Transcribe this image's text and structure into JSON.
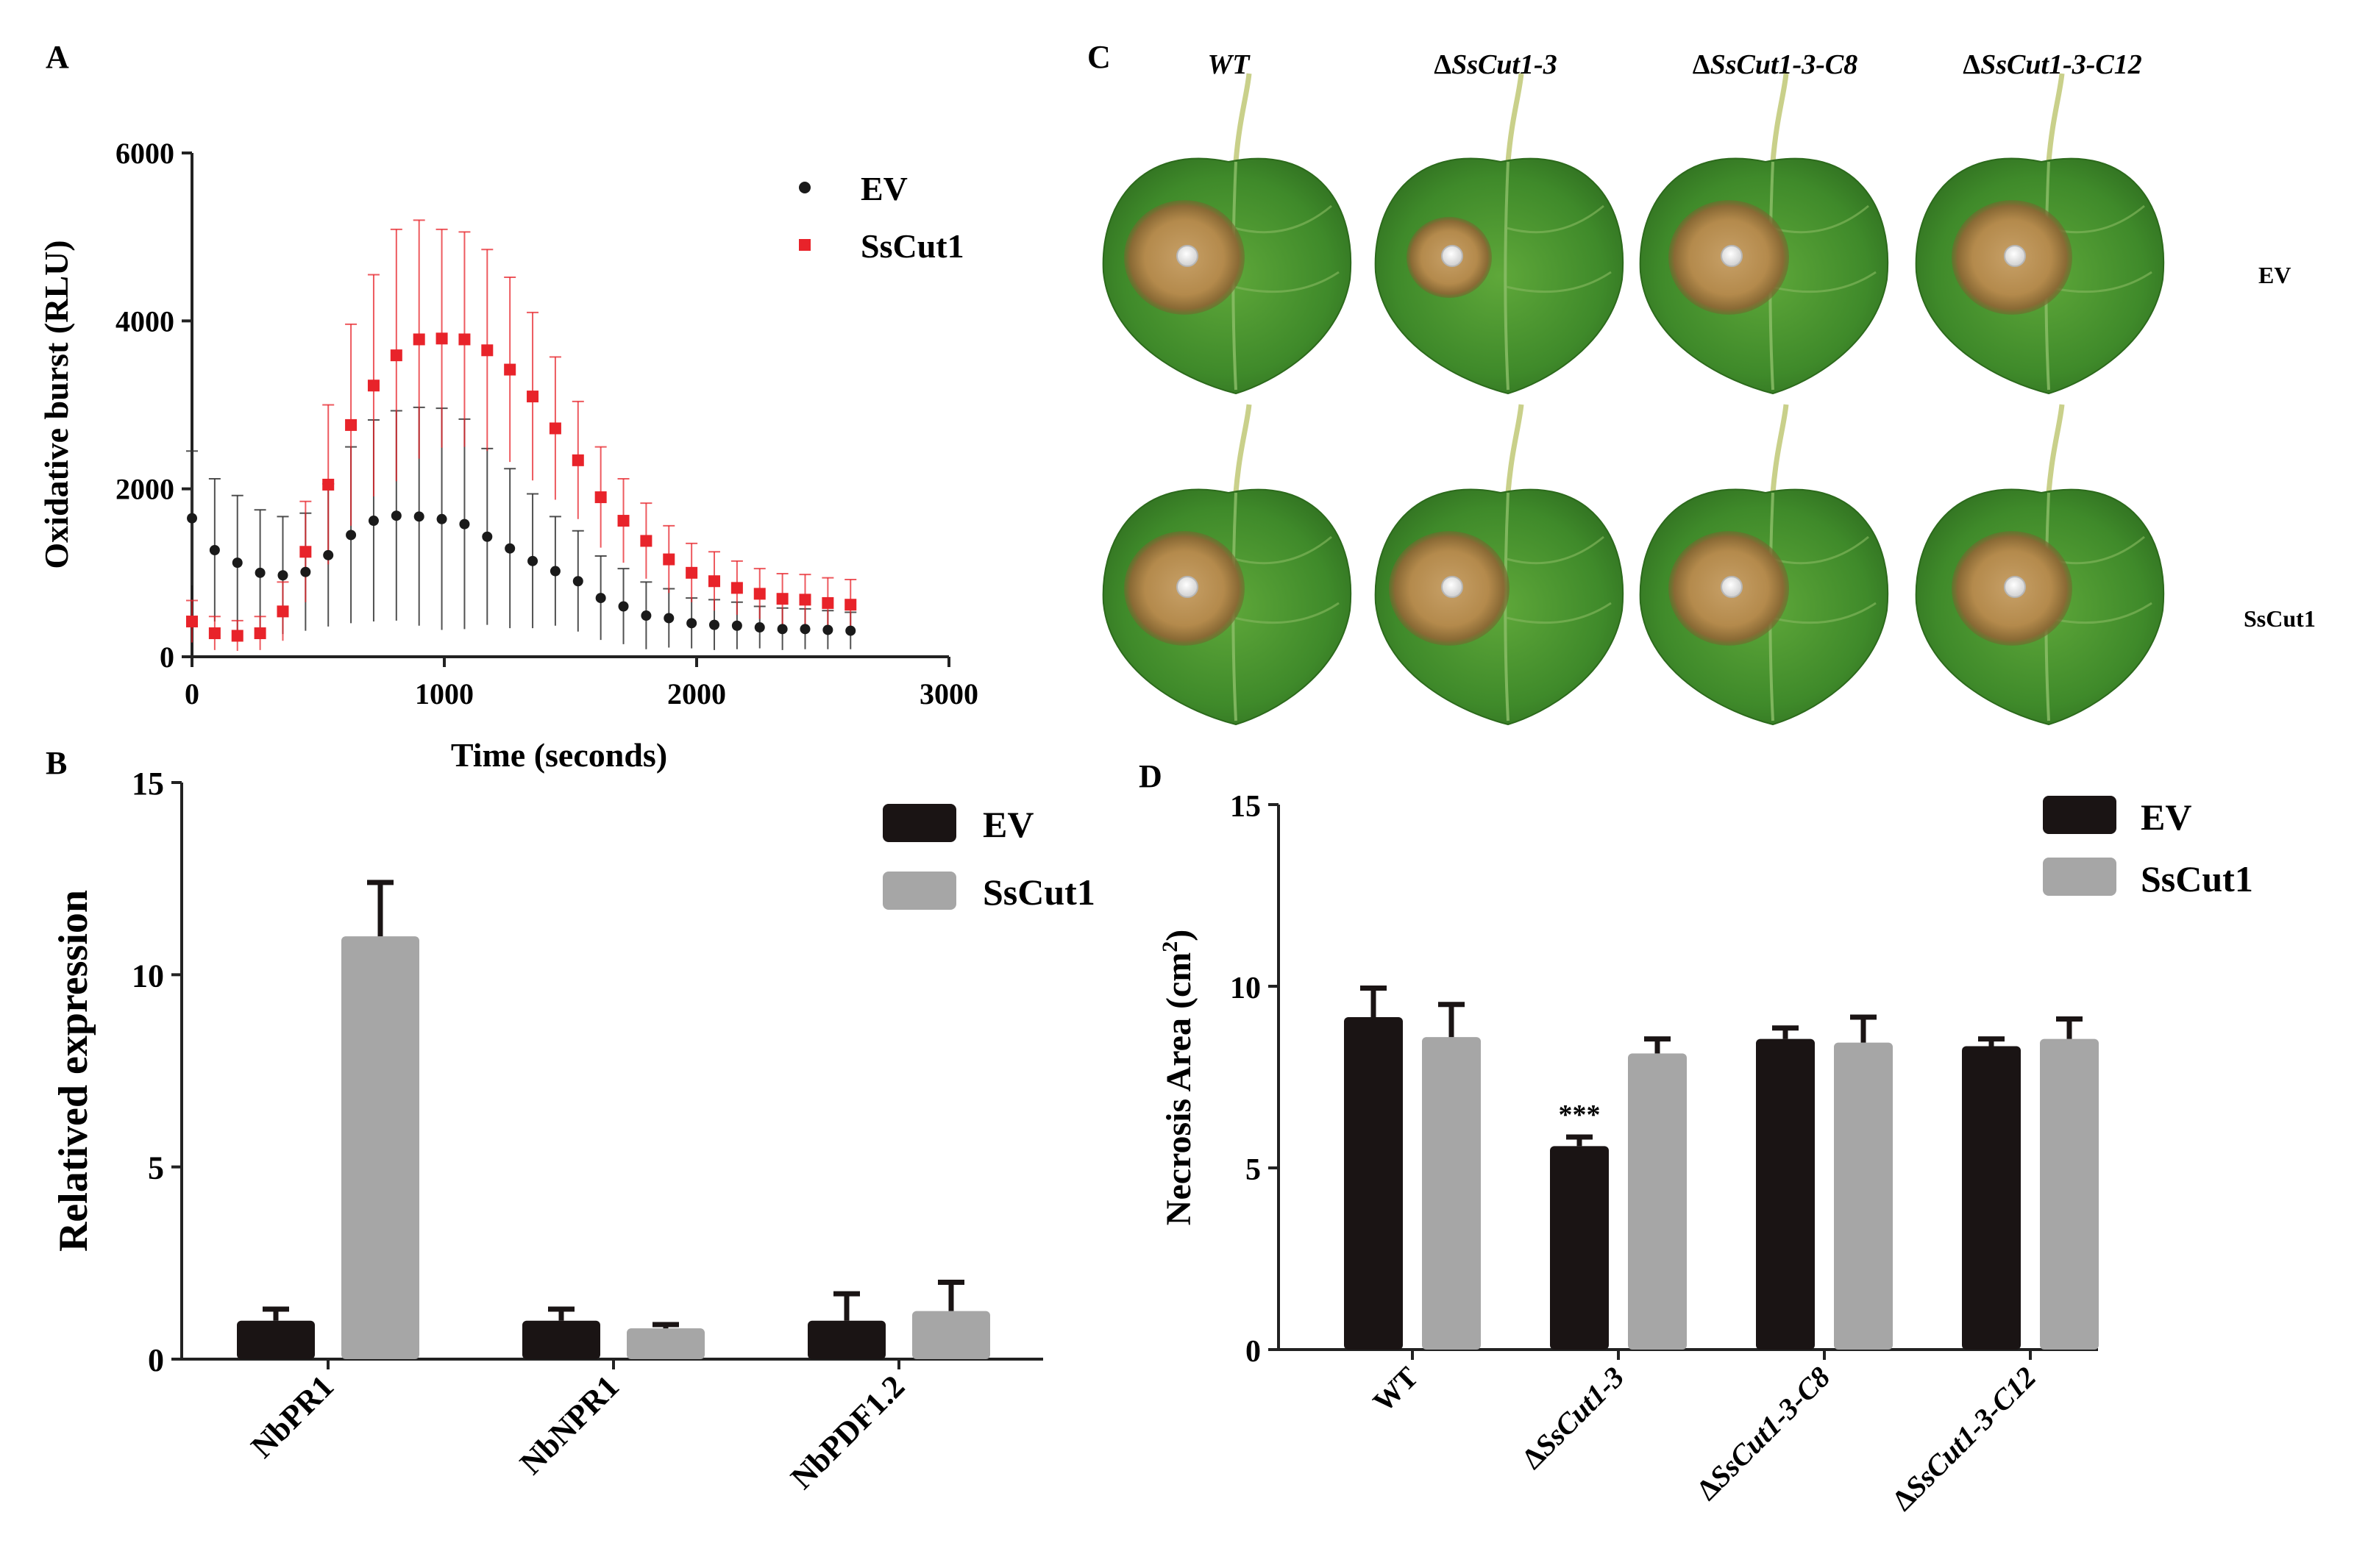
{
  "panels": {
    "A": "A",
    "B": "B",
    "C": "C",
    "D": "D"
  },
  "chart_data": [
    {
      "id": "A",
      "type": "scatter",
      "title": "",
      "xlabel": "Time (seconds)",
      "ylabel": "Oxidative burst (RLU)",
      "xlim": [
        0,
        3000
      ],
      "ylim": [
        0,
        6000
      ],
      "xticks": [
        "0",
        "1000",
        "2000",
        "3000"
      ],
      "yticks": [
        "0",
        "2000",
        "4000",
        "6000"
      ],
      "legend": [
        "EV",
        "SsCut1"
      ],
      "x": [
        0,
        90,
        180,
        270,
        360,
        450,
        540,
        630,
        720,
        810,
        900,
        990,
        1080,
        1170,
        1260,
        1350,
        1440,
        1530,
        1620,
        1710,
        1800,
        1890,
        1980,
        2070,
        2160,
        2250,
        2340,
        2430,
        2520,
        2610
      ],
      "series": [
        {
          "name": "EV",
          "color": "#1a1a1a",
          "values": [
            1650,
            1270,
            1120,
            1000,
            970,
            1010,
            1210,
            1450,
            1620,
            1680,
            1670,
            1640,
            1580,
            1430,
            1290,
            1140,
            1020,
            900,
            700,
            600,
            490,
            460,
            400,
            380,
            370,
            350,
            330,
            330,
            320,
            310
          ],
          "errors": [
            800,
            850,
            800,
            750,
            700,
            700,
            850,
            1050,
            1200,
            1250,
            1300,
            1320,
            1250,
            1050,
            950,
            800,
            650,
            600,
            500,
            450,
            400,
            350,
            300,
            300,
            280,
            250,
            250,
            240,
            230,
            220
          ]
        },
        {
          "name": "SsCut1",
          "color": "#e8232a",
          "values": [
            420,
            280,
            250,
            280,
            540,
            1250,
            2050,
            2760,
            3230,
            3590,
            3780,
            3790,
            3780,
            3650,
            3420,
            3100,
            2720,
            2340,
            1900,
            1620,
            1380,
            1160,
            1000,
            900,
            820,
            750,
            690,
            680,
            640,
            620
          ],
          "errors": [
            250,
            200,
            180,
            200,
            350,
            600,
            950,
            1200,
            1320,
            1500,
            1420,
            1300,
            1280,
            1200,
            1100,
            1000,
            850,
            700,
            600,
            500,
            450,
            400,
            350,
            350,
            320,
            300,
            300,
            300,
            300,
            300
          ]
        }
      ]
    },
    {
      "id": "B",
      "type": "bar",
      "title": "",
      "xlabel": "",
      "ylabel": "Relatived expression",
      "ylim": [
        0,
        15
      ],
      "yticks": [
        "0",
        "5",
        "10",
        "15"
      ],
      "categories": [
        "NbPR1",
        "NbNPR1",
        "NbPDF1.2"
      ],
      "series": [
        {
          "name": "EV",
          "color": "#1a1414",
          "values": [
            1.0,
            1.0,
            1.0
          ],
          "errors": [
            0.3,
            0.3,
            0.7
          ]
        },
        {
          "name": "SsCut1",
          "color": "#a6a6a6",
          "values": [
            11.0,
            0.8,
            1.25
          ],
          "errors": [
            1.4,
            0.1,
            0.75
          ]
        }
      ]
    },
    {
      "id": "D",
      "type": "bar",
      "title": "",
      "xlabel": "",
      "ylabel": "Necrosis Area (cm",
      "ylabel_sup": "2",
      "ylabel_end": ")",
      "ylim": [
        0,
        15
      ],
      "yticks": [
        "0",
        "5",
        "10",
        "15"
      ],
      "categories": [
        {
          "prefix": "",
          "name": "WT"
        },
        {
          "prefix": "Δ",
          "name": "SsCut1-3"
        },
        {
          "prefix": "Δ",
          "name": "SsCut1-3-C8"
        },
        {
          "prefix": "Δ",
          "name": "SsCut1-3-C12"
        }
      ],
      "series": [
        {
          "name": "EV",
          "color": "#1a1414",
          "values": [
            9.15,
            5.6,
            8.55,
            8.35
          ],
          "errors": [
            0.8,
            0.25,
            0.3,
            0.2
          ]
        },
        {
          "name": "SsCut1",
          "color": "#a6a6a6",
          "values": [
            8.6,
            8.15,
            8.45,
            8.55
          ],
          "errors": [
            0.9,
            0.4,
            0.7,
            0.55
          ]
        }
      ],
      "annotations": [
        {
          "category": 1,
          "series": 0,
          "text": "***"
        }
      ]
    }
  ],
  "panel_c": {
    "columns": [
      {
        "prefix": "",
        "name": "WT"
      },
      {
        "prefix": "Δ",
        "name": "SsCut1-3"
      },
      {
        "prefix": "Δ",
        "name": "SsCut1-3-C8"
      },
      {
        "prefix": "Δ",
        "name": "SsCut1-3-C12"
      }
    ],
    "rows": [
      "EV",
      "SsCut1"
    ]
  }
}
